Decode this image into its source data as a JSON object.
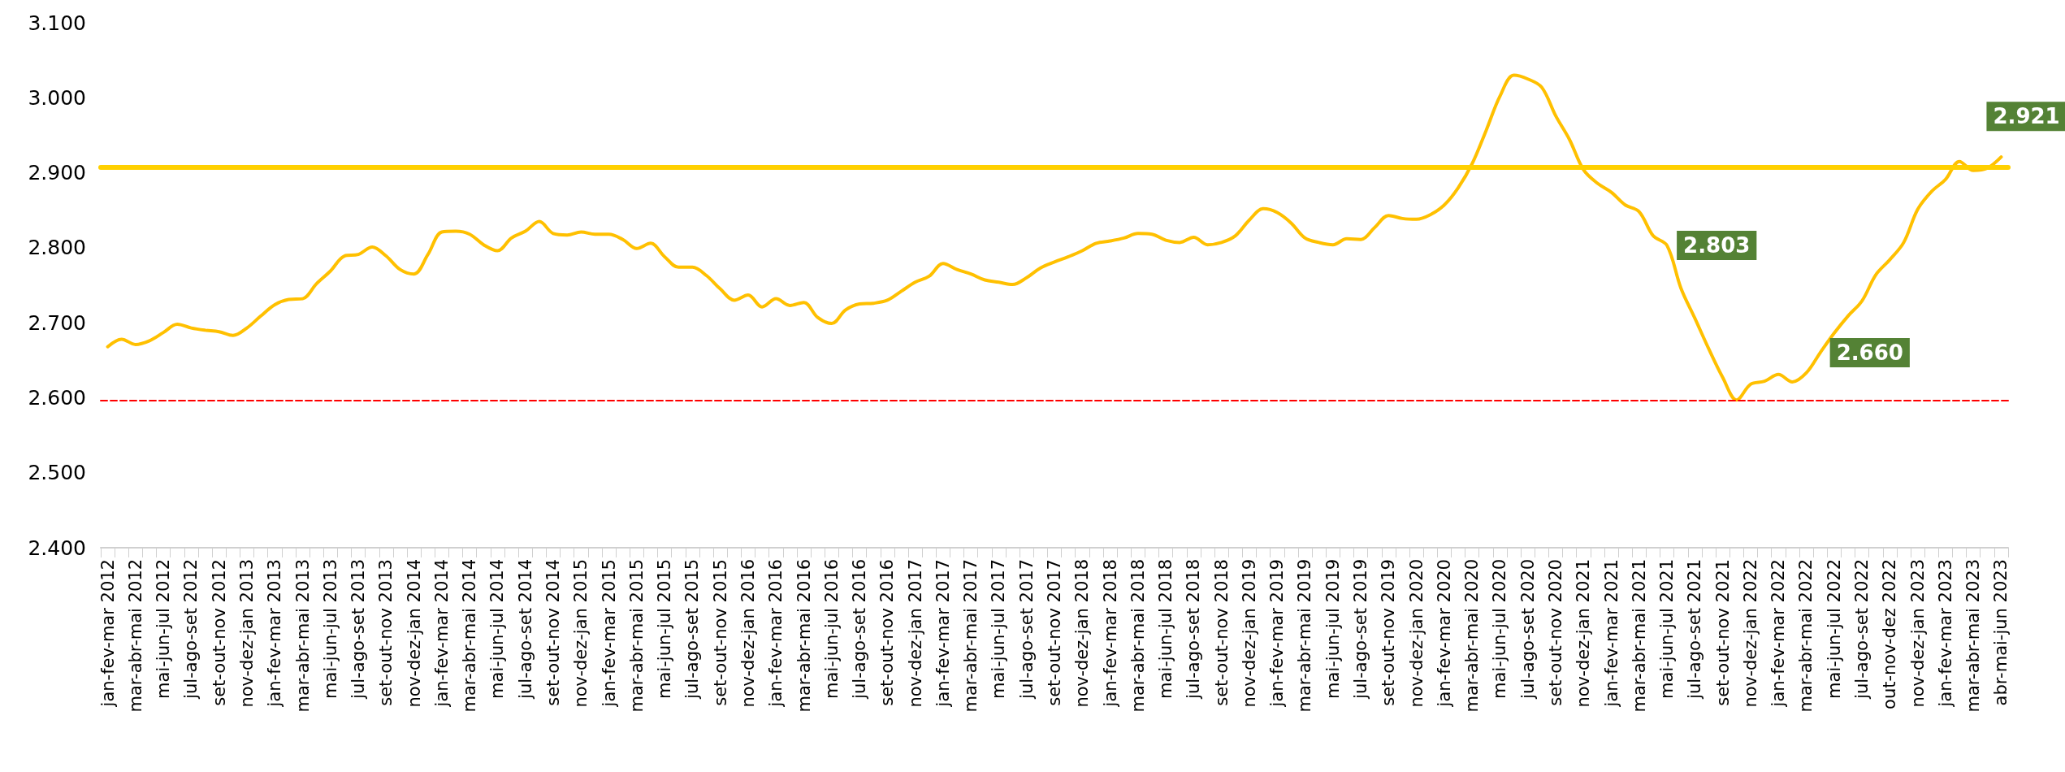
{
  "chart_data": {
    "type": "line",
    "categories": [
      "jan-fev-mar 2012",
      null,
      "mar-abr-mai 2012",
      null,
      "mai-jun-jul 2012",
      null,
      "jul-ago-set 2012",
      null,
      "set-out-nov 2012",
      null,
      "nov-dez-jan 2013",
      null,
      "jan-fev-mar 2013",
      null,
      "mar-abr-mai 2013",
      null,
      "mai-jun-jul 2013",
      null,
      "jul-ago-set 2013",
      null,
      "set-out-nov 2013",
      null,
      "nov-dez-jan 2014",
      null,
      "jan-fev-mar 2014",
      null,
      "mar-abr-mai 2014",
      null,
      "mai-jun-jul 2014",
      null,
      "jul-ago-set 2014",
      null,
      "set-out-nov 2014",
      null,
      "nov-dez-jan 2015",
      null,
      "jan-fev-mar 2015",
      null,
      "mar-abr-mai 2015",
      null,
      "mai-jun-jul 2015",
      null,
      "jul-ago-set 2015",
      null,
      "set-out-nov 2015",
      null,
      "nov-dez-jan 2016",
      null,
      "jan-fev-mar 2016",
      null,
      "mar-abr-mai 2016",
      null,
      "mai-jun-jul 2016",
      null,
      "jul-ago-set 2016",
      null,
      "set-out-nov 2016",
      null,
      "nov-dez-jan 2017",
      null,
      "jan-fev-mar 2017",
      null,
      "mar-abr-mai 2017",
      null,
      "mai-jun-jul 2017",
      null,
      "jul-ago-set 2017",
      null,
      "set-out-nov 2017",
      null,
      "nov-dez-jan 2018",
      null,
      "jan-fev-mar 2018",
      null,
      "mar-abr-mai 2018",
      null,
      "mai-jun-jul 2018",
      null,
      "jul-ago-set 2018",
      null,
      "set-out-nov 2018",
      null,
      "nov-dez-jan 2019",
      null,
      "jan-fev-mar 2019",
      null,
      "mar-abr-mai 2019",
      null,
      "mai-jun-jul 2019",
      null,
      "jul-ago-set 2019",
      null,
      "set-out-nov 2019",
      null,
      "nov-dez-jan 2020",
      null,
      "jan-fev-mar 2020",
      null,
      "mar-abr-mai 2020",
      null,
      "mai-jun-jul 2020",
      null,
      "jul-ago-set 2020",
      null,
      "set-out-nov 2020",
      null,
      "nov-dez-jan 2021",
      null,
      "jan-fev-mar 2021",
      null,
      "mar-abr-mai 2021",
      null,
      "mai-jun-jul 2021",
      null,
      "jul-ago-set 2021",
      null,
      "set-out-nov 2021",
      null,
      "nov-dez-jan 2022",
      null,
      "jan-fev-mar 2022",
      null,
      "mar-abr-mai 2022",
      null,
      "mai-jun-jul 2022",
      null,
      "jul-ago-set 2022",
      null,
      "out-nov-dez 2022",
      null,
      "nov-dez-jan 2023",
      null,
      "jan-fev-mar 2023",
      null,
      "mar-abr-mai 2023",
      null,
      "abr-mai-jun 2023"
    ],
    "series": [
      {
        "color": "#ffc000",
        "values": [
          2668,
          2678,
          2671,
          2676,
          2687,
          2698,
          2693,
          2690,
          2688,
          2683,
          2693,
          2709,
          2724,
          2731,
          2732,
          2752,
          2769,
          2789,
          2791,
          2801,
          2789,
          2771,
          2765,
          2791,
          2821,
          2822,
          2818,
          2804,
          2796,
          2813,
          2822,
          2835,
          2819,
          2817,
          2821,
          2818,
          2818,
          2811,
          2799,
          2806,
          2788,
          2774,
          2774,
          2763,
          2745,
          2730,
          2737,
          2721,
          2732,
          2723,
          2727,
          2707,
          2699,
          2717,
          2725,
          2726,
          2730,
          2742,
          2754,
          2762,
          2779,
          2771,
          2765,
          2757,
          2754,
          2751,
          2760,
          2773,
          2781,
          2788,
          2796,
          2806,
          2809,
          2813,
          2819,
          2818,
          2810,
          2807,
          2814,
          2804,
          2807,
          2816,
          2837,
          2852,
          2847,
          2833,
          2813,
          2807,
          2804,
          2812,
          2811,
          2827,
          2843,
          2839,
          2838,
          2844,
          2857,
          2880,
          2912,
          2956,
          3002,
          3030,
          3025,
          3014,
          2976,
          2944,
          2904,
          2886,
          2874,
          2857,
          2848,
          2816,
          2803,
          2746,
          2706,
          2665,
          2627,
          2597,
          2618,
          2622,
          2631,
          2621,
          2633,
          2660,
          2686,
          2709,
          2729,
          2764,
          2784,
          2807,
          2851,
          2875,
          2891,
          2915,
          2903,
          2906,
          2921
        ],
        "value_labels": [
          null,
          null,
          null,
          null,
          null,
          null,
          null,
          null,
          null,
          null,
          null,
          null,
          null,
          null,
          null,
          null,
          null,
          null,
          null,
          null,
          null,
          null,
          null,
          null,
          null,
          null,
          null,
          null,
          null,
          null,
          null,
          null,
          null,
          null,
          null,
          null,
          null,
          null,
          null,
          null,
          null,
          null,
          null,
          null,
          null,
          null,
          null,
          null,
          null,
          null,
          null,
          null,
          null,
          null,
          null,
          null,
          null,
          null,
          null,
          null,
          null,
          null,
          null,
          null,
          null,
          null,
          null,
          null,
          null,
          null,
          null,
          null,
          null,
          null,
          null,
          null,
          null,
          null,
          null,
          null,
          null,
          null,
          null,
          null,
          null,
          null,
          null,
          null,
          null,
          null,
          null,
          null,
          null,
          null,
          null,
          null,
          null,
          null,
          null,
          null,
          null,
          null,
          null,
          null,
          null,
          null,
          null,
          null,
          null,
          null,
          null,
          null,
          "2.803",
          null,
          null,
          null,
          null,
          null,
          null,
          null,
          null,
          null,
          null,
          "2.660",
          null,
          null,
          null,
          null,
          null,
          null,
          null,
          null,
          null,
          null,
          null,
          null,
          "2.921"
        ]
      }
    ],
    "ylim": [
      2400,
      3100
    ],
    "yticks": [
      {
        "value": 2400,
        "label": "2.400"
      },
      {
        "value": 2500,
        "label": "2.500"
      },
      {
        "value": 2600,
        "label": "2.600"
      },
      {
        "value": 2700,
        "label": "2.700"
      },
      {
        "value": 2800,
        "label": "2.800"
      },
      {
        "value": 2900,
        "label": "2.900"
      },
      {
        "value": 3000,
        "label": "3.000"
      },
      {
        "value": 3100,
        "label": "3.100"
      }
    ],
    "ref_lines": [
      {
        "axis": "y",
        "value": 2907,
        "color": "#ffd000",
        "line_style": "solid"
      },
      {
        "axis": "y",
        "value": 2596,
        "color": "#ff0000",
        "line_style": "dashed"
      }
    ],
    "grid": false,
    "marker": "none",
    "line_style": "solid"
  }
}
